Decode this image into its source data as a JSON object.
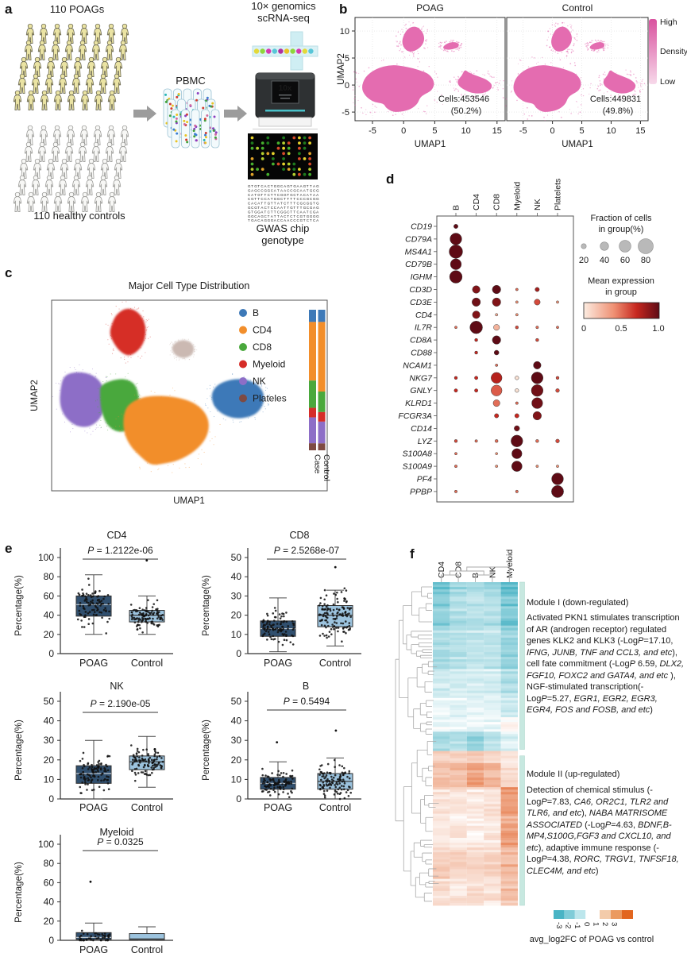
{
  "panels": {
    "a": "a",
    "b": "b",
    "c": "c",
    "d": "d",
    "e": "e",
    "f": "f"
  },
  "panel_a": {
    "top_group": "110 POAGs",
    "bottom_group": "110 healthy controls",
    "pbmc": "PBMC",
    "seq_line1": "10× genomics",
    "seq_line2": "scRNA-seq",
    "device_screen": "10x",
    "gwas_line1": "GWAS chip",
    "gwas_line2": "genotype",
    "people_fill_poag": "#eae3a3",
    "people_fill_control": "#f7f7f5",
    "sequence_alphabet": "GCAT"
  },
  "chart_data": [
    {
      "id": "panel_b_density_umap",
      "type": "scatter",
      "titles": [
        "POAG",
        "Control"
      ],
      "xlabel": "UMAP1",
      "ylabel": "UMAP2",
      "xticks": [
        -5,
        0,
        5,
        10,
        15
      ],
      "yticks": [
        10,
        5,
        0,
        -5
      ],
      "xlim": [
        -7.8,
        16.3
      ],
      "ylim": [
        -6.6,
        12.5
      ],
      "point_color": "#e46cb0",
      "annotations": [
        {
          "cells": "Cells:453546",
          "pct": "(50.2%)"
        },
        {
          "cells": "Cells:449831",
          "pct": "(49.8%)"
        }
      ],
      "colorbar": {
        "top": "High",
        "mid": "Density",
        "bottom": "Low",
        "color_high": "#d9529f",
        "color_low": "#f7d9ea"
      }
    },
    {
      "id": "panel_c_celltype_umap",
      "type": "scatter",
      "title": "Major Cell Type Distribution",
      "xlabel": "UMAP1",
      "ylabel": "UMAP2",
      "legend": [
        {
          "label": "B",
          "color": "#3d79b8"
        },
        {
          "label": "CD4",
          "color": "#f28e2b"
        },
        {
          "label": "CD8",
          "color": "#4aa83c"
        },
        {
          "label": "Myeloid",
          "color": "#d62d28"
        },
        {
          "label": "NK",
          "color": "#8d6ec7"
        },
        {
          "label": "Plateles",
          "color": "#7e4a42"
        }
      ],
      "stacked_bars": {
        "bar_labels": [
          "Case",
          "Control"
        ],
        "segment_order": [
          "B",
          "CD4",
          "CD8",
          "Myeloid",
          "NK",
          "Plateles"
        ],
        "values": [
          [
            8.7,
            41.7,
            19.4,
            6.8,
            18.4,
            5.0
          ],
          [
            8.7,
            49.5,
            14.6,
            6.8,
            15.5,
            4.9
          ]
        ]
      }
    },
    {
      "id": "panel_d_marker_dotplot",
      "type": "scatter",
      "cell_types": [
        "B",
        "CD4",
        "CD8",
        "Myeloid",
        "NK",
        "Platelets"
      ],
      "genes": [
        "CD19",
        "CD79A",
        "MS4A1",
        "CD79B",
        "IGHM",
        "CD3D",
        "CD3E",
        "CD4",
        "IL7R",
        "CD8A",
        "CD88",
        "NCAM1",
        "NKG7",
        "GNLY",
        "KLRD1",
        "FCGR3A",
        "CD14",
        "LYZ",
        "S100A8",
        "S100A9",
        "PF4",
        "PPBP"
      ],
      "fraction": [
        [
          15,
          0,
          0,
          0,
          0,
          0
        ],
        [
          60,
          0,
          0,
          0,
          0,
          0
        ],
        [
          70,
          0,
          0,
          0,
          0,
          0
        ],
        [
          55,
          0,
          0,
          0,
          0,
          0
        ],
        [
          65,
          0,
          0,
          0,
          0,
          0
        ],
        [
          0,
          35,
          40,
          5,
          15,
          0
        ],
        [
          0,
          40,
          40,
          5,
          25,
          5
        ],
        [
          0,
          35,
          5,
          5,
          0,
          0
        ],
        [
          5,
          65,
          25,
          8,
          6,
          5
        ],
        [
          0,
          8,
          40,
          0,
          8,
          0
        ],
        [
          0,
          8,
          18,
          0,
          0,
          0
        ],
        [
          0,
          0,
          5,
          0,
          35,
          0
        ],
        [
          8,
          10,
          55,
          12,
          60,
          8
        ],
        [
          10,
          10,
          55,
          12,
          60,
          12
        ],
        [
          0,
          0,
          30,
          6,
          55,
          0
        ],
        [
          0,
          0,
          15,
          15,
          40,
          0
        ],
        [
          0,
          0,
          0,
          22,
          0,
          0
        ],
        [
          8,
          6,
          8,
          60,
          8,
          12
        ],
        [
          5,
          0,
          4,
          50,
          0,
          0
        ],
        [
          6,
          0,
          5,
          52,
          5,
          5
        ],
        [
          0,
          0,
          0,
          0,
          0,
          60
        ],
        [
          6,
          0,
          0,
          6,
          0,
          62
        ]
      ],
      "expression": [
        [
          1,
          0,
          0,
          0,
          0,
          0
        ],
        [
          1,
          0,
          0,
          0,
          0,
          0
        ],
        [
          1,
          0,
          0,
          0,
          0,
          0
        ],
        [
          1,
          0,
          0,
          0,
          0,
          0
        ],
        [
          1,
          0,
          0,
          0,
          0,
          0
        ],
        [
          0,
          0.9,
          1,
          0.5,
          0.8,
          0
        ],
        [
          0,
          0.95,
          0.9,
          0.4,
          0.6,
          0.4
        ],
        [
          0,
          0.9,
          0.3,
          0.4,
          0,
          0
        ],
        [
          0.5,
          1,
          0.25,
          0.6,
          0.5,
          0.5
        ],
        [
          0,
          0.7,
          1,
          0,
          0.6,
          0
        ],
        [
          0,
          0.7,
          1,
          0,
          0,
          0
        ],
        [
          0,
          0,
          0.5,
          0,
          1,
          0
        ],
        [
          0.7,
          0.7,
          0.75,
          0.05,
          1,
          0.6
        ],
        [
          0.7,
          0.7,
          0.55,
          0.05,
          0.95,
          0.6
        ],
        [
          0,
          0,
          0.5,
          0.5,
          0.95,
          0
        ],
        [
          0,
          0,
          0.7,
          0.7,
          0.9,
          0
        ],
        [
          0,
          0,
          0,
          0.95,
          0,
          0
        ],
        [
          0.6,
          0.5,
          0.5,
          1,
          0.5,
          0.6
        ],
        [
          0.5,
          0,
          0.4,
          1,
          0,
          0
        ],
        [
          0.5,
          0,
          0.4,
          1,
          0.4,
          0.4
        ],
        [
          0,
          0,
          0,
          0,
          0,
          1
        ],
        [
          0.5,
          0,
          0,
          0.5,
          0,
          1
        ]
      ],
      "size_legend": {
        "title1": "Fraction of cells",
        "title2": "in group(%)",
        "ticks": [
          20,
          40,
          60,
          80
        ]
      },
      "color_legend": {
        "title1": "Mean expression",
        "title2": "in group",
        "ticks": [
          "0",
          "0.5",
          "1.0"
        ]
      }
    },
    {
      "id": "panel_f_heatmap",
      "type": "heatmap",
      "columns": [
        "CD4",
        "CD8",
        "B",
        "NK",
        "Myeloid"
      ],
      "module1": {
        "header": "Module I (down-regulated)",
        "segments": [
          [
            "Activated PKN1 stimulates transcription of AR (androgen receptor) regulated genes KLK2 and KLK3 (-Log",
            0
          ],
          [
            "P",
            1
          ],
          [
            "=17.10, ",
            0
          ],
          [
            "IFNG, JUNB, TNF and CCL3, and etc",
            1
          ],
          [
            "), cell fate commitment (-Log",
            0
          ],
          [
            "P",
            1
          ],
          [
            " 6.59, ",
            0
          ],
          [
            "DLX2, FGF10, FOXC2 and GATA4, and etc",
            1
          ],
          [
            " ), NGF-stimulated transcription(-Log",
            0
          ],
          [
            "P",
            1
          ],
          [
            "=5.27, ",
            0
          ],
          [
            "EGR1, EGR2, EGR3, EGR4, FOS and FOSB, and etc",
            1
          ],
          [
            ")",
            0
          ]
        ]
      },
      "module2": {
        "header": "Module II (up-regulated)",
        "segments": [
          [
            "Detection of chemical stimulus (-Log",
            0
          ],
          [
            "P",
            1
          ],
          [
            "=7.83, ",
            0
          ],
          [
            "CA6, OR2C1, TLR2 and TLR6, and etc",
            1
          ],
          [
            "), ",
            0
          ],
          [
            "NABA MATRISOME ASSOCIATED",
            1
          ],
          [
            " (-Log",
            0
          ],
          [
            "P",
            1
          ],
          [
            "=4.63, ",
            0
          ],
          [
            "BDNF,B-MP4,S100G,FGF3 and CXCL10, and etc",
            1
          ],
          [
            "), adaptive immune response (-Log",
            0
          ],
          [
            "P",
            1
          ],
          [
            "=4.38, ",
            0
          ],
          [
            "RORC, TRGV1, TNFSF18, CLEC4M, and etc",
            1
          ],
          [
            ")",
            0
          ]
        ]
      },
      "row_blocks": [
        {
          "rows": 6,
          "base": [
            -2.0,
            -1.3,
            -1.1,
            -1.3,
            -2.3
          ]
        },
        {
          "rows": 14,
          "base": [
            -1.5,
            -1.0,
            -0.9,
            -1.0,
            -1.8
          ]
        },
        {
          "rows": 16,
          "base": [
            -1.0,
            -0.8,
            -0.7,
            -0.8,
            -1.3
          ]
        },
        {
          "rows": 12,
          "base": [
            -0.6,
            -0.5,
            -0.5,
            -0.5,
            -1.0
          ]
        },
        {
          "rows": 8,
          "base": [
            -0.3,
            -0.3,
            -0.3,
            -0.3,
            -0.6
          ]
        },
        {
          "rows": 6,
          "base": [
            -0.15,
            -0.2,
            -0.25,
            -0.2,
            0.1
          ]
        },
        {
          "rows": 8,
          "base": [
            -1.1,
            -0.9,
            -1.3,
            -0.9,
            -0.35
          ]
        },
        {
          "rows": 5,
          "base": [
            0.7,
            0.6,
            0.9,
            0.7,
            0.25
          ]
        },
        {
          "rows": 10,
          "base": [
            1.0,
            1.1,
            1.5,
            1.2,
            0.5
          ]
        },
        {
          "rows": 13,
          "base": [
            0.45,
            0.35,
            0.35,
            0.35,
            1.6
          ]
        },
        {
          "rows": 12,
          "base": [
            0.3,
            0.25,
            0.2,
            0.3,
            1.5
          ]
        },
        {
          "rows": 13,
          "base": [
            0.85,
            0.7,
            0.6,
            0.7,
            1.2
          ]
        },
        {
          "rows": 11,
          "base": [
            0.5,
            0.45,
            0.5,
            0.45,
            1.1
          ]
        }
      ],
      "colorbar": {
        "ticks": [
          "-3",
          "-2",
          "-1",
          "0",
          "1",
          "2",
          "3"
        ],
        "label": "avg_log2FC of POAG vs control",
        "neg_colors": [
          "#49b4c5",
          "#7fccd8",
          "#bce6ec"
        ],
        "pos_colors": [
          "#f3cbaa",
          "#eb9a60",
          "#e2661f"
        ]
      }
    }
  ],
  "boxplots": {
    "ylabel": "Percentage(%)",
    "groups": [
      "POAG",
      "Control"
    ],
    "box_colors": {
      "poag": "#31506f",
      "control": "#9cc3de"
    },
    "plots": [
      {
        "title": "CD4",
        "p": "1.2122e-06",
        "ylim": [
          0,
          100
        ],
        "yticks": [
          0,
          20,
          40,
          60,
          80,
          100
        ],
        "poag": {
          "q1": 39,
          "med": 51,
          "q3": 60,
          "lo": 20,
          "hi": 82,
          "n": 95,
          "outliers": []
        },
        "control": {
          "q1": 33,
          "med": 40,
          "q3": 45,
          "lo": 20,
          "hi": 60,
          "n": 110,
          "outliers": [
            97
          ]
        }
      },
      {
        "title": "CD8",
        "p": "2.5268e-07",
        "ylim": [
          0,
          50
        ],
        "yticks": [
          0,
          10,
          20,
          30,
          40,
          50
        ],
        "poag": {
          "q1": 9,
          "med": 13,
          "q3": 17,
          "lo": 1,
          "hi": 29,
          "n": 100,
          "outliers": []
        },
        "control": {
          "q1": 14,
          "med": 20,
          "q3": 25,
          "lo": 4,
          "hi": 33,
          "n": 130,
          "outliers": [
            45
          ]
        }
      },
      {
        "title": "NK",
        "p": "2.190e-05",
        "ylim": [
          0,
          50
        ],
        "yticks": [
          0,
          10,
          20,
          30,
          40,
          50
        ],
        "poag": {
          "q1": 8,
          "med": 13,
          "q3": 17,
          "lo": 0,
          "hi": 30,
          "n": 100,
          "outliers": []
        },
        "control": {
          "q1": 15,
          "med": 19,
          "q3": 22,
          "lo": 6,
          "hi": 32,
          "n": 105,
          "outliers": []
        }
      },
      {
        "title": "B",
        "p": "0.5494",
        "ylim": [
          0,
          50
        ],
        "yticks": [
          0,
          10,
          20,
          30,
          40,
          50
        ],
        "poag": {
          "q1": 5,
          "med": 8,
          "q3": 11,
          "lo": 0,
          "hi": 19,
          "n": 100,
          "outliers": [
            29
          ]
        },
        "control": {
          "q1": 5,
          "med": 9,
          "q3": 13,
          "lo": 0,
          "hi": 21,
          "n": 110,
          "outliers": [
            35
          ]
        }
      },
      {
        "title": "Myeloid",
        "p": "0.0325",
        "ylim": [
          0,
          100
        ],
        "yticks": [
          0,
          20,
          40,
          60,
          80,
          100
        ],
        "poag": {
          "q1": 1,
          "med": 3,
          "q3": 8,
          "lo": 0,
          "hi": 18,
          "n": 45,
          "outliers": [
            61
          ]
        },
        "control": {
          "q1": 0.5,
          "med": 1.5,
          "q3": 7,
          "lo": 0,
          "hi": 14,
          "n": 0,
          "outliers": []
        }
      }
    ]
  }
}
